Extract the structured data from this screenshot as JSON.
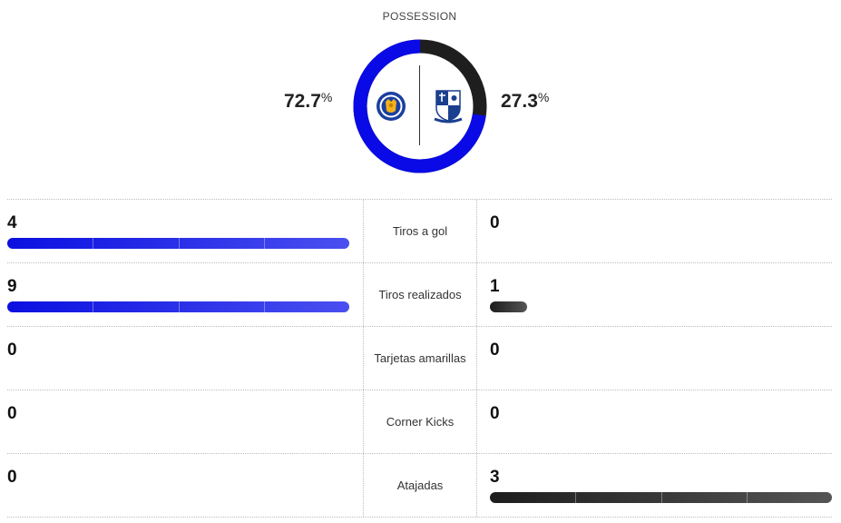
{
  "possession": {
    "title": "POSSESSION",
    "home_pct": "72.7",
    "away_pct": "27.3",
    "pct_symbol": "%",
    "home_fraction": 0.727,
    "away_fraction": 0.273,
    "home_color": "#0a0ae6",
    "away_color": "#1e1e1e"
  },
  "teams": {
    "home_crest_icon": "leicester-city-crest",
    "away_crest_icon": "tranmere-rovers-crest"
  },
  "stats": [
    {
      "label": "Tiros a gol",
      "home": "4",
      "away": "0",
      "home_bar": 1.0,
      "away_bar": 0.0
    },
    {
      "label": "Tiros realizados",
      "home": "9",
      "away": "1",
      "home_bar": 1.0,
      "away_bar": 0.11
    },
    {
      "label": "Tarjetas amarillas",
      "home": "0",
      "away": "0",
      "home_bar": 0.0,
      "away_bar": 0.0
    },
    {
      "label": "Corner Kicks",
      "home": "0",
      "away": "0",
      "home_bar": 0.0,
      "away_bar": 0.0
    },
    {
      "label": "Atajadas",
      "home": "0",
      "away": "3",
      "home_bar": 0.0,
      "away_bar": 1.0
    }
  ]
}
